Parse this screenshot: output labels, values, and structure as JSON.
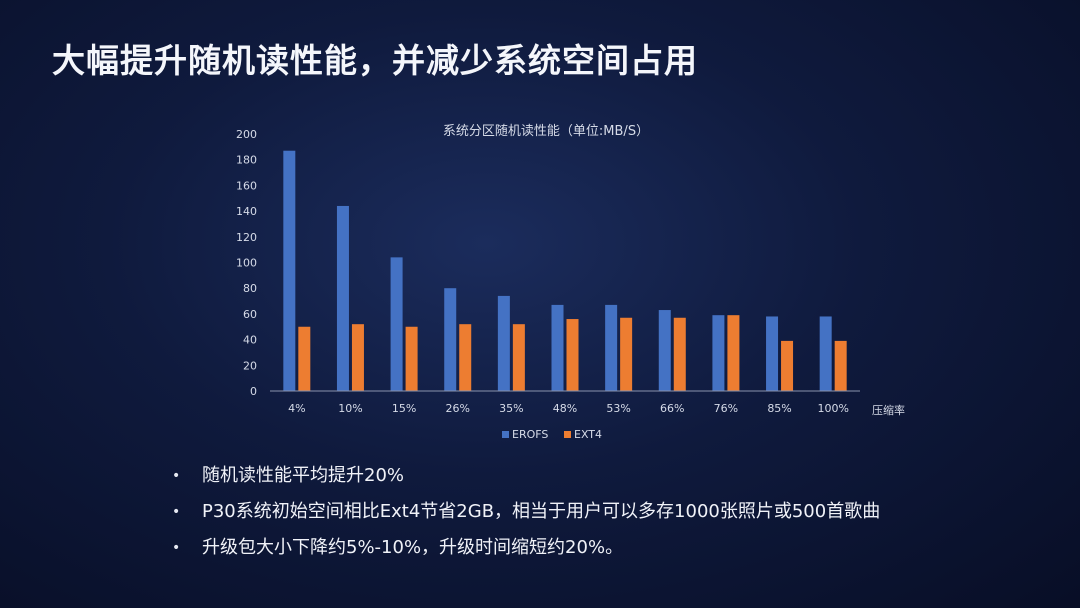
{
  "slide": {
    "title": "大幅提升随机读性能，并减少系统空间占用"
  },
  "bullets": [
    "随机读性能平均提升20%",
    "P30系统初始空间相比Ext4节省2GB，相当于用户可以多存1000张照片或500首歌曲",
    "升级包大小下降约5%-10%，升级时间缩短约20%。"
  ],
  "bullet_marker": "•",
  "chart_data": {
    "type": "bar",
    "title": "系统分区随机读性能（单位:MB/S）",
    "xlabel": "压缩率",
    "ylabel": "",
    "categories": [
      "4%",
      "10%",
      "15%",
      "26%",
      "35%",
      "48%",
      "53%",
      "66%",
      "76%",
      "85%",
      "100%"
    ],
    "series": [
      {
        "name": "EROFS",
        "color": "#4472c4",
        "values": [
          187,
          144,
          104,
          80,
          74,
          67,
          67,
          63,
          59,
          58,
          58
        ]
      },
      {
        "name": "EXT4",
        "color": "#ed7d31",
        "values": [
          50,
          52,
          50,
          52,
          52,
          56,
          57,
          57,
          59,
          39,
          39
        ]
      }
    ],
    "ylim": [
      0,
      200
    ],
    "yticks": [
      0,
      20,
      40,
      60,
      80,
      100,
      120,
      140,
      160,
      180,
      200
    ],
    "grid": false,
    "legend_position": "bottom"
  }
}
